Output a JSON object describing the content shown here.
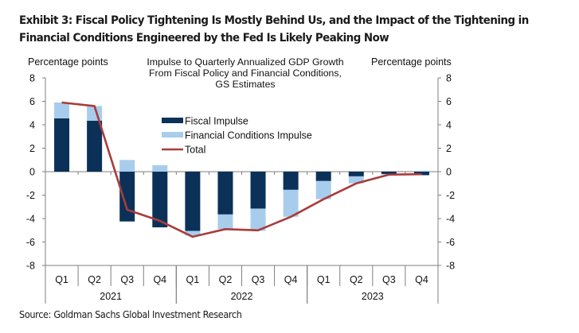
{
  "title": "Exhibit 3: Fiscal Policy Tightening Is Mostly Behind Us, and the Impact of the Tightening in Financial Conditions Engineered by the Fed Is Likely Peaking Now",
  "source": "Source: Goldman Sachs Global Investment Research",
  "chart_data": {
    "type": "bar",
    "subtype": "stacked bar with line overlay",
    "title": "Impulse to Quarterly Annualized GDP Growth From Fiscal Policy and Financial Conditions, GS Estimates",
    "title_lines": [
      "Impulse to Quarterly Annualized GDP Growth",
      "From Fiscal Policy and Financial Conditions,",
      "GS Estimates"
    ],
    "ylabel_left": "Percentage points",
    "ylabel_right": "Percentage  points",
    "ylim": [
      -8,
      8
    ],
    "yticks": [
      8,
      6,
      4,
      2,
      0,
      -2,
      -4,
      -6,
      -8
    ],
    "categories": [
      "Q1",
      "Q2",
      "Q3",
      "Q4",
      "Q1",
      "Q2",
      "Q3",
      "Q4",
      "Q1",
      "Q2",
      "Q3",
      "Q4"
    ],
    "groups": [
      {
        "label": "2021",
        "count": 4
      },
      {
        "label": "2022",
        "count": 4
      },
      {
        "label": "2023",
        "count": 4
      }
    ],
    "series": [
      {
        "name": "Fiscal Impulse",
        "kind": "bar",
        "color": "#0b3159",
        "values": [
          4.55,
          4.35,
          -4.25,
          -4.75,
          -5.05,
          -3.65,
          -3.15,
          -1.55,
          -0.8,
          -0.4,
          -0.2,
          -0.3
        ]
      },
      {
        "name": "Financial Conditions Impulse",
        "kind": "bar",
        "color": "#a8cdec",
        "values": [
          1.35,
          1.25,
          1.0,
          0.55,
          -0.4,
          -1.25,
          -1.9,
          -2.3,
          -1.55,
          -0.6,
          -0.05,
          0.08
        ]
      },
      {
        "name": "Total",
        "kind": "line",
        "color": "#a83c3b",
        "values": [
          5.9,
          5.6,
          -3.25,
          -4.2,
          -5.55,
          -4.9,
          -5.0,
          -3.85,
          -2.35,
          -1.0,
          -0.25,
          -0.22
        ]
      }
    ],
    "legend": {
      "position": "center-left",
      "entries": [
        "Fiscal Impulse",
        "Financial Conditions Impulse",
        "Total"
      ]
    },
    "grid": false
  }
}
